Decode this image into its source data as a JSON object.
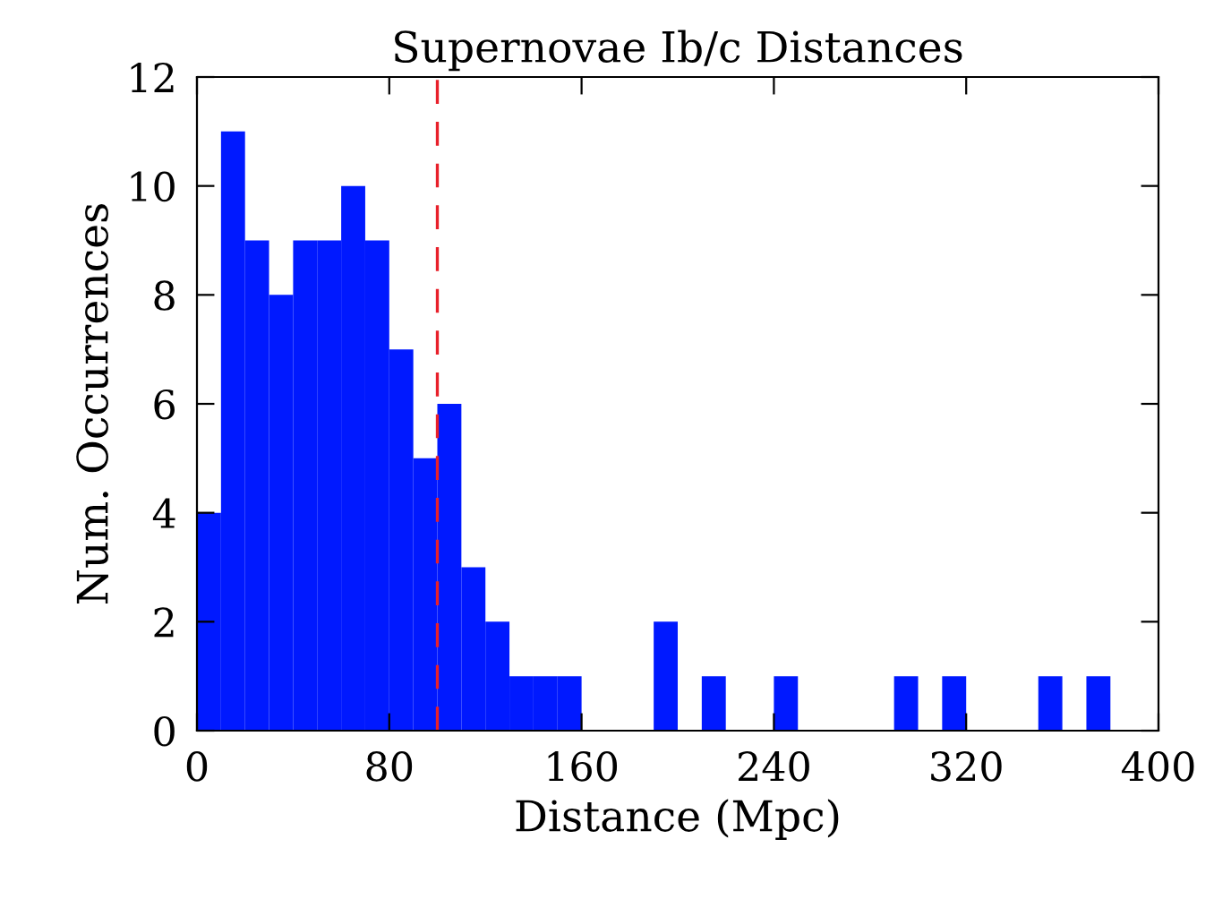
{
  "chart_data": {
    "type": "histogram",
    "title": "Supernovae Ib/c Distances",
    "xlabel": "Distance (Mpc)",
    "ylabel": "Num. Occurrences",
    "bins": [
      0,
      10,
      20,
      30,
      40,
      50,
      60,
      70,
      80,
      90,
      100,
      110,
      120,
      130,
      140,
      150,
      160,
      170,
      180,
      190,
      200,
      210,
      220,
      230,
      240,
      250,
      260,
      270,
      280,
      290,
      300,
      310,
      320,
      330,
      340,
      350,
      360,
      370,
      380,
      390,
      400
    ],
    "values": [
      4,
      11,
      9,
      8,
      9,
      9,
      10,
      9,
      7,
      5,
      6,
      3,
      2,
      1,
      1,
      1,
      0,
      0,
      0,
      2,
      0,
      1,
      0,
      0,
      1,
      0,
      0,
      0,
      0,
      1,
      0,
      1,
      0,
      0,
      0,
      1,
      0,
      1,
      0,
      0
    ],
    "color": "#0019ff",
    "xlim": [
      0,
      400
    ],
    "xticks": [
      0,
      80,
      160,
      240,
      320,
      400
    ],
    "ylim": [
      0,
      12
    ],
    "yticks": [
      0,
      2,
      4,
      6,
      8,
      10,
      12
    ],
    "ref_lines": [
      {
        "axis": "x",
        "value": 100,
        "color": "#e8202a",
        "line_style": "dashed"
      }
    ],
    "grid": false,
    "legend": false
  }
}
